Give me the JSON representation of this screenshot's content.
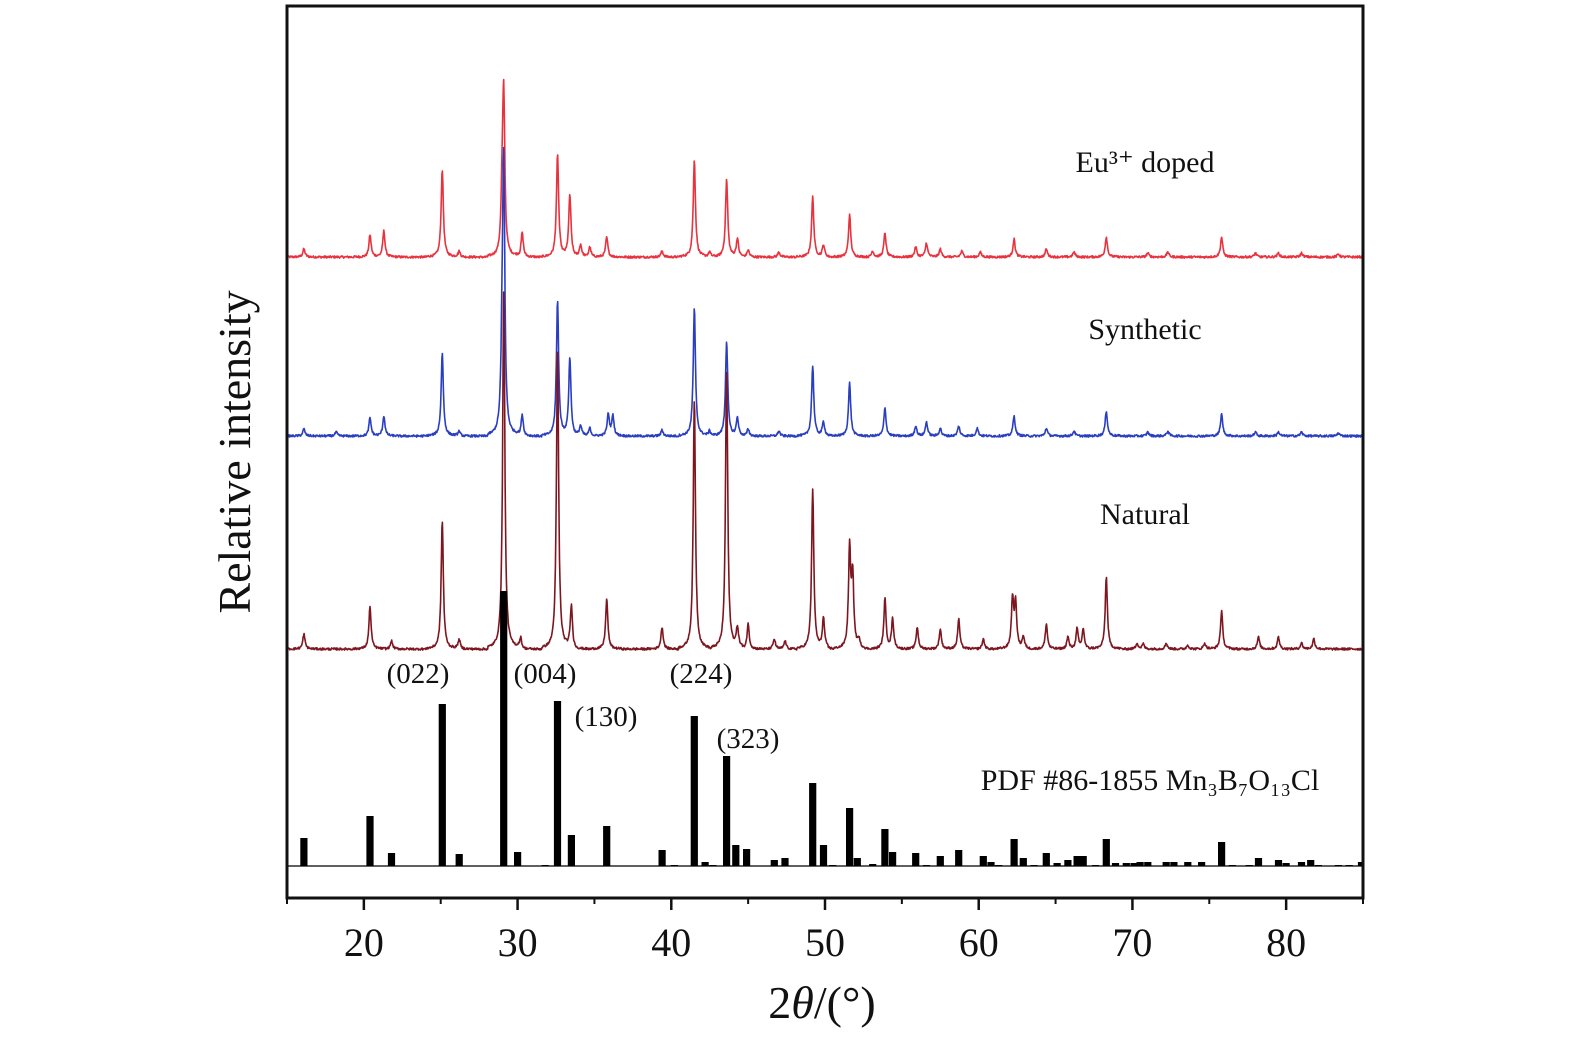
{
  "chart_data": {
    "type": "line",
    "xlabel": "2θ/(°)",
    "ylabel": "Relative intensity",
    "xlim": [
      15,
      85
    ],
    "x_ticks": [
      "20",
      "30",
      "40",
      "50",
      "60",
      "70",
      "80"
    ],
    "grid": false,
    "series": [
      {
        "name": "Eu³⁺ doped",
        "color": "#e8323e",
        "peaks": [
          [
            16.1,
            8
          ],
          [
            20.4,
            22
          ],
          [
            21.3,
            26
          ],
          [
            25.1,
            88
          ],
          [
            26.2,
            6
          ],
          [
            29.0,
            52
          ],
          [
            29.1,
            155
          ],
          [
            30.3,
            25
          ],
          [
            32.6,
            102
          ],
          [
            33.4,
            62
          ],
          [
            34.1,
            12
          ],
          [
            34.7,
            10
          ],
          [
            35.8,
            20
          ],
          [
            39.4,
            6
          ],
          [
            41.5,
            97
          ],
          [
            42.5,
            5
          ],
          [
            43.6,
            78
          ],
          [
            44.3,
            18
          ],
          [
            45.0,
            7
          ],
          [
            47.0,
            5
          ],
          [
            49.2,
            60
          ],
          [
            49.9,
            12
          ],
          [
            51.6,
            42
          ],
          [
            53.1,
            6
          ],
          [
            53.9,
            24
          ],
          [
            55.9,
            10
          ],
          [
            56.6,
            14
          ],
          [
            57.5,
            8
          ],
          [
            58.9,
            6
          ],
          [
            60.1,
            5
          ],
          [
            62.3,
            18
          ],
          [
            64.4,
            8
          ],
          [
            66.2,
            5
          ],
          [
            68.3,
            20
          ],
          [
            71.0,
            4
          ],
          [
            72.3,
            5
          ],
          [
            75.8,
            20
          ],
          [
            78.0,
            4
          ],
          [
            79.5,
            4
          ],
          [
            81.0,
            4
          ],
          [
            83.4,
            3
          ]
        ]
      },
      {
        "name": "Synthetic",
        "color": "#2a3fc0",
        "peaks": [
          [
            16.1,
            7
          ],
          [
            18.2,
            4
          ],
          [
            20.4,
            18
          ],
          [
            21.3,
            20
          ],
          [
            25.1,
            83
          ],
          [
            26.2,
            5
          ],
          [
            29.0,
            72
          ],
          [
            29.1,
            258
          ],
          [
            30.3,
            22
          ],
          [
            32.6,
            135
          ],
          [
            33.4,
            78
          ],
          [
            34.1,
            10
          ],
          [
            34.7,
            8
          ],
          [
            35.9,
            22
          ],
          [
            36.2,
            20
          ],
          [
            39.4,
            6
          ],
          [
            41.5,
            128
          ],
          [
            42.5,
            5
          ],
          [
            43.6,
            95
          ],
          [
            44.3,
            18
          ],
          [
            45.0,
            7
          ],
          [
            47.0,
            5
          ],
          [
            49.2,
            70
          ],
          [
            49.9,
            14
          ],
          [
            51.6,
            53
          ],
          [
            53.9,
            28
          ],
          [
            55.9,
            10
          ],
          [
            56.6,
            14
          ],
          [
            57.5,
            8
          ],
          [
            58.7,
            10
          ],
          [
            59.9,
            8
          ],
          [
            62.3,
            20
          ],
          [
            64.4,
            8
          ],
          [
            66.2,
            5
          ],
          [
            68.3,
            25
          ],
          [
            71.0,
            4
          ],
          [
            72.3,
            5
          ],
          [
            75.8,
            22
          ],
          [
            78.0,
            4
          ],
          [
            79.5,
            4
          ],
          [
            81.0,
            4
          ],
          [
            83.4,
            3
          ]
        ]
      },
      {
        "name": "Natural",
        "color": "#7e1620",
        "peaks": [
          [
            16.1,
            15
          ],
          [
            20.4,
            42
          ],
          [
            21.8,
            8
          ],
          [
            25.1,
            128
          ],
          [
            26.2,
            10
          ],
          [
            29.1,
            358
          ],
          [
            30.2,
            12
          ],
          [
            32.6,
            300
          ],
          [
            33.5,
            42
          ],
          [
            35.8,
            50
          ],
          [
            39.4,
            22
          ],
          [
            41.5,
            250
          ],
          [
            43.6,
            280
          ],
          [
            44.3,
            20
          ],
          [
            45.0,
            25
          ],
          [
            46.7,
            10
          ],
          [
            47.4,
            8
          ],
          [
            49.2,
            160
          ],
          [
            49.9,
            30
          ],
          [
            51.6,
            98
          ],
          [
            51.8,
            70
          ],
          [
            52.2,
            8
          ],
          [
            53.9,
            50
          ],
          [
            54.4,
            30
          ],
          [
            56.0,
            22
          ],
          [
            57.5,
            20
          ],
          [
            58.7,
            30
          ],
          [
            60.3,
            10
          ],
          [
            62.2,
            50
          ],
          [
            62.4,
            44
          ],
          [
            62.9,
            12
          ],
          [
            64.4,
            25
          ],
          [
            65.8,
            12
          ],
          [
            66.4,
            20
          ],
          [
            66.8,
            20
          ],
          [
            68.3,
            72
          ],
          [
            70.3,
            6
          ],
          [
            70.7,
            5
          ],
          [
            72.2,
            6
          ],
          [
            73.6,
            4
          ],
          [
            74.7,
            6
          ],
          [
            75.8,
            38
          ],
          [
            78.2,
            12
          ],
          [
            79.5,
            12
          ],
          [
            81.0,
            6
          ],
          [
            81.8,
            10
          ]
        ]
      },
      {
        "name": "PDF #86-1855 Mn₃B₇O₁₃Cl",
        "type": "bar",
        "color": "#000000",
        "bars": [
          [
            16.1,
            28
          ],
          [
            20.4,
            50
          ],
          [
            21.8,
            13
          ],
          [
            25.1,
            162
          ],
          [
            26.2,
            12
          ],
          [
            29.1,
            275
          ],
          [
            30.0,
            14
          ],
          [
            31.8,
            1
          ],
          [
            32.6,
            165
          ],
          [
            33.5,
            31
          ],
          [
            35.8,
            40
          ],
          [
            39.4,
            16
          ],
          [
            40.2,
            1
          ],
          [
            41.5,
            150
          ],
          [
            42.2,
            4
          ],
          [
            42.7,
            1
          ],
          [
            43.6,
            110
          ],
          [
            44.2,
            21
          ],
          [
            44.9,
            17
          ],
          [
            46.7,
            6
          ],
          [
            47.4,
            8
          ],
          [
            49.2,
            83
          ],
          [
            49.9,
            21
          ],
          [
            50.5,
            1
          ],
          [
            51.6,
            58
          ],
          [
            52.1,
            8
          ],
          [
            53.1,
            2
          ],
          [
            53.9,
            37
          ],
          [
            54.4,
            14
          ],
          [
            55.9,
            13
          ],
          [
            56.6,
            1
          ],
          [
            57.5,
            10
          ],
          [
            58.7,
            16
          ],
          [
            60.3,
            10
          ],
          [
            60.8,
            4
          ],
          [
            61.3,
            1
          ],
          [
            62.3,
            27
          ],
          [
            62.9,
            8
          ],
          [
            63.6,
            1
          ],
          [
            64.4,
            13
          ],
          [
            65.1,
            3
          ],
          [
            65.8,
            6
          ],
          [
            66.4,
            10
          ],
          [
            66.8,
            10
          ],
          [
            67.6,
            1
          ],
          [
            68.3,
            27
          ],
          [
            68.9,
            3
          ],
          [
            69.6,
            3
          ],
          [
            70.1,
            3
          ],
          [
            70.5,
            4
          ],
          [
            71.0,
            4
          ],
          [
            72.2,
            4
          ],
          [
            72.7,
            4
          ],
          [
            73.6,
            4
          ],
          [
            74.5,
            4
          ],
          [
            75.8,
            24
          ],
          [
            76.5,
            1
          ],
          [
            77.6,
            1
          ],
          [
            78.2,
            8
          ],
          [
            79.5,
            6
          ],
          [
            80.0,
            3
          ],
          [
            81.0,
            4
          ],
          [
            81.6,
            6
          ],
          [
            82.1,
            1
          ],
          [
            83.4,
            1
          ],
          [
            84.1,
            1
          ],
          [
            84.9,
            4
          ]
        ]
      }
    ],
    "annotations": [
      {
        "text": "(022)",
        "x": 25.1
      },
      {
        "text": "(004)",
        "x": 29.1
      },
      {
        "text": "(130)",
        "x": 32.6
      },
      {
        "text": "(224)",
        "x": 41.5
      },
      {
        "text": "(323)",
        "x": 43.6
      }
    ]
  }
}
